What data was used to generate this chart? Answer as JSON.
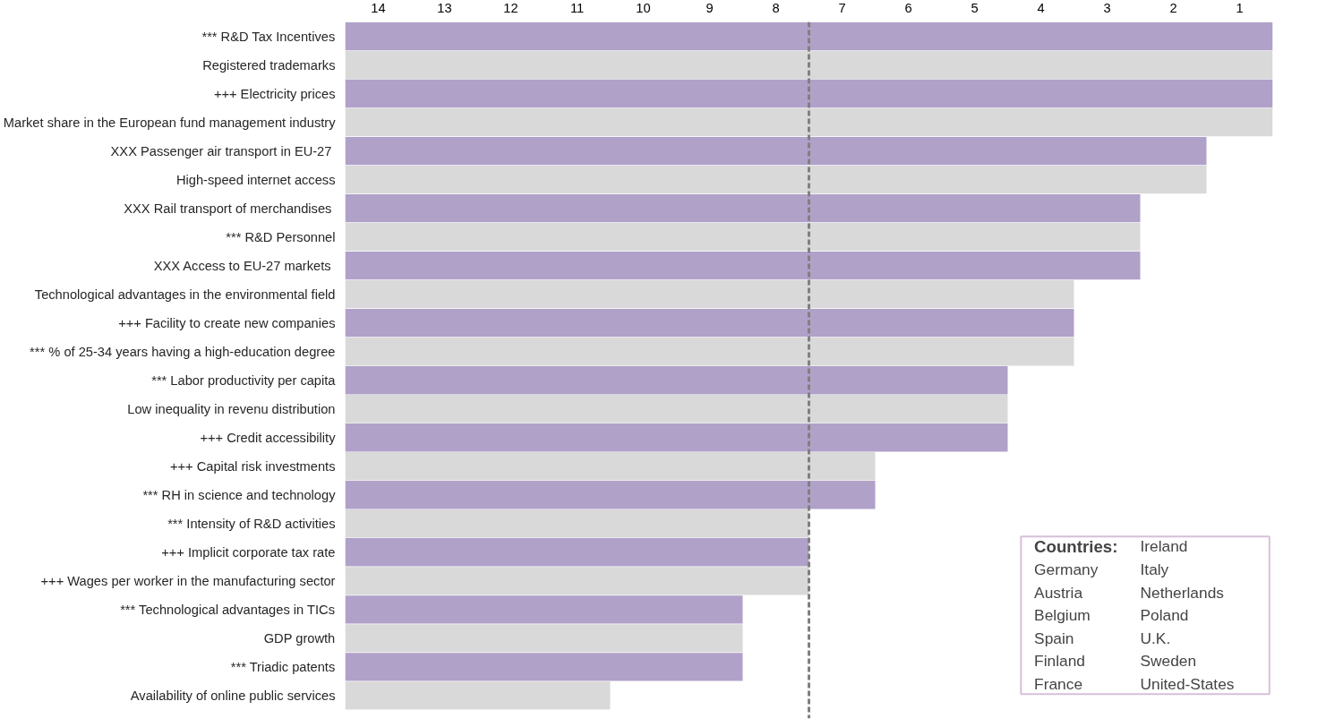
{
  "chart_data": {
    "type": "bar",
    "orientation": "horizontal",
    "categories": [
      "*** R&D Tax Incentives",
      "Registered trademarks",
      "+++ Electricity prices",
      "Market share in the European fund management industry",
      "XXX  Passenger air transport in EU-27",
      "High-speed internet access",
      "XXX  Rail transport of merchandises",
      "*** R&D Personnel",
      "XXX  Access to EU-27 markets",
      "Technological advantages in the environmental field",
      "+++ Facility to create new companies",
      "*** % of 25-34 years having a high-education degree",
      "*** Labor productivity per capita",
      "Low inequality in revenu distribution",
      "+++ Credit accessibility",
      "+++ Capital risk investments",
      "*** RH in science and technology",
      "*** Intensity of R&D activities",
      "+++ Implicit corporate tax rate",
      "+++ Wages per worker in the manufacturing sector",
      "*** Technological advantages in TICs",
      "GDP growth",
      "*** Triadic patents",
      "Availability of online public services"
    ],
    "base": [
      14.5,
      14.5,
      14.5,
      14.5,
      14.5,
      14.5,
      14.5,
      14.5,
      14.5,
      14.5,
      14.5,
      14.5,
      14.5,
      14.5,
      14.5,
      14.5,
      14.5,
      14.5,
      14.5,
      14.5,
      14.5,
      14.5,
      14.5,
      14.5
    ],
    "values": [
      -14,
      -14,
      -14,
      -14,
      -13,
      -13,
      -12,
      -12,
      -12,
      -11,
      -11,
      -11,
      -10,
      -10,
      -10,
      -8,
      -8,
      -7,
      -7,
      -7,
      -6,
      -6,
      -6,
      -4
    ],
    "colors": [
      "#b0a1c9",
      "#d9d9d9",
      "#b0a1c9",
      "#d9d9d9",
      "#b0a1c9",
      "#d9d9d9",
      "#b0a1c9",
      "#d9d9d9",
      "#b0a1c9",
      "#d9d9d9",
      "#b0a1c9",
      "#d9d9d9",
      "#b0a1c9",
      "#d9d9d9",
      "#b0a1c9",
      "#d9d9d9",
      "#b0a1c9",
      "#d9d9d9",
      "#b0a1c9",
      "#d9d9d9",
      "#b0a1c9",
      "#d9d9d9",
      "#b0a1c9",
      "#d9d9d9"
    ],
    "xlim": [
      14.5,
      0.5
    ],
    "xticks": [
      14,
      13,
      12,
      11,
      10,
      9,
      8,
      7,
      6,
      5,
      4,
      3,
      2,
      1
    ],
    "ref_lines": [
      {
        "axis": "x",
        "value": 7.5,
        "color": "#808080",
        "line_style": "dashed"
      }
    ],
    "annotations": [
      "Countries:",
      "Germany",
      "Austria",
      "Belgium",
      "Spain",
      "Finland",
      "France",
      "Ireland",
      "Italy",
      "Netherlands",
      "Poland",
      "U.K.",
      "Sweden",
      "United-States"
    ]
  }
}
